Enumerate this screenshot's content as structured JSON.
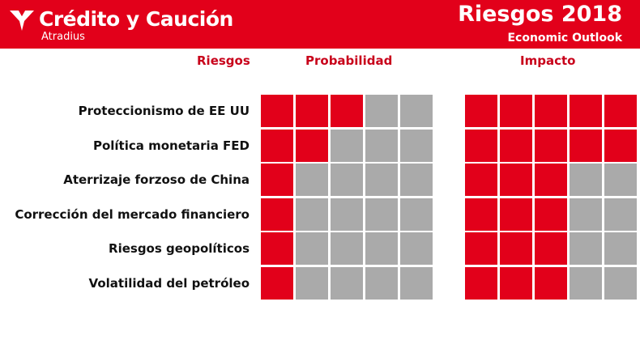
{
  "header": {
    "brand_name": "Crédito y Caución",
    "brand_sub": "Atradius",
    "logo_icon": "atradius-bird-icon",
    "title": "Riesgos 2018",
    "subtitle": "Economic Outlook"
  },
  "columns": {
    "risks": "Riesgos",
    "probability": "Probabilidad",
    "impact": "Impacto"
  },
  "scale_max": 5,
  "risks": [
    {
      "label": "Proteccionismo de EE UU",
      "probability": 3,
      "impact": 5
    },
    {
      "label": "Política monetaria FED",
      "probability": 2,
      "impact": 5
    },
    {
      "label": "Aterrizaje forzoso de China",
      "probability": 1,
      "impact": 3
    },
    {
      "label": "Corrección del  mercado financiero",
      "probability": 1,
      "impact": 3
    },
    {
      "label": "Riesgos geopolíticos",
      "probability": 1,
      "impact": 3
    },
    {
      "label": "Volatilidad del petróleo",
      "probability": 1,
      "impact": 3
    }
  ],
  "colors": {
    "brand_red": "#e2001a",
    "header_text_red": "#c8001a",
    "empty_cell": "#aaaaaa"
  }
}
